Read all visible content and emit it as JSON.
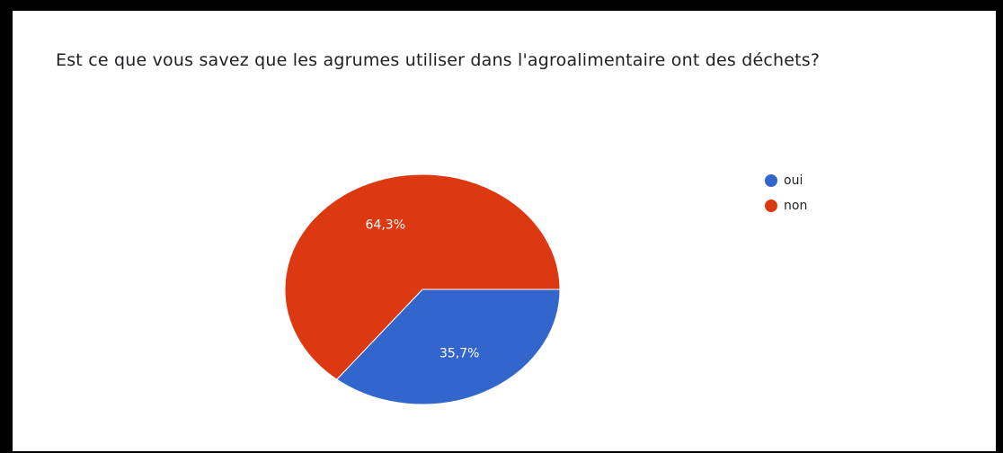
{
  "chart_data": {
    "type": "pie",
    "title": "Est ce que vous savez que les agrumes utiliser dans l'agroalimentaire ont des déchets?",
    "categories": [
      "oui",
      "non"
    ],
    "values": [
      35.7,
      64.3
    ],
    "value_labels": [
      "35,7%",
      "64,3%"
    ],
    "colors": [
      "#3366cc",
      "#dc3912"
    ],
    "legend": "right"
  }
}
